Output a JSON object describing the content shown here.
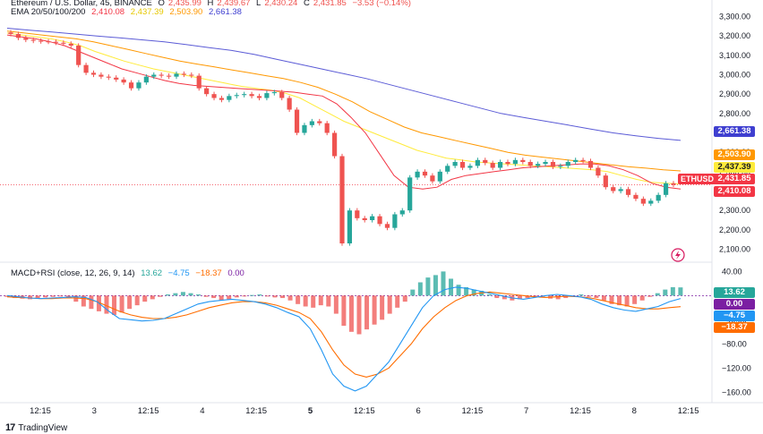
{
  "header": {
    "symbol_line": "Ethereum / U.S. Dollar, 45, BINANCE",
    "ohlc": {
      "o_label": "O",
      "o": "2,435.99",
      "h_label": "H",
      "h": "2,439.67",
      "l_label": "L",
      "l": "2,430.24",
      "c_label": "C",
      "c": "2,431.85",
      "change": "−3.53 (−0.14%)"
    },
    "ema_name": "EMA 20/50/100/200",
    "ema_values": [
      "2,410.08",
      "2,437.39",
      "2,503.90",
      "2,661.38"
    ]
  },
  "macd_legend": {
    "name": "MACD+RSI (close, 12, 26, 9, 14)",
    "values": [
      "13.62",
      "−4.75",
      "−18.37",
      "0.00"
    ]
  },
  "price_labels": {
    "ema200": "2,661.38",
    "ema100": "2,503.90",
    "ema50": "2,437.39",
    "symbol": "ETHUSD",
    "last": "2,431.85",
    "ema20": "2,410.08"
  },
  "macd_labels": {
    "hist": "13.62",
    "zero": "0.00",
    "macd": "−4.75",
    "signal": "−18.37"
  },
  "footer": {
    "brand": "TradingView"
  },
  "colors": {
    "up": "#26a69a",
    "down": "#ef5350",
    "ema20": "#f23645",
    "ema50": "#ffeb3b",
    "ema100": "#ff9800",
    "ema200": "#5b5bd6",
    "macd": "#2196f3",
    "signal": "#ff6d00"
  },
  "chart_data": [
    {
      "type": "candlestick",
      "title": "Ethereum / U.S. Dollar, 45, BINANCE",
      "y_axis": {
        "ticks": [
          "3,300.00",
          "3,200.00",
          "3,100.00",
          "3,000.00",
          "2,900.00",
          "2,800.00",
          "2,700.00",
          "2,600.00",
          "2,500.00",
          "2,400.00",
          "2,300.00",
          "2,200.00",
          "2,100.00"
        ],
        "range": [
          2070,
          3330
        ]
      },
      "x_axis": {
        "ticks": [
          "12:15",
          "3",
          "12:15",
          "4",
          "12:15",
          "5",
          "12:15",
          "6",
          "12:15",
          "7",
          "12:15",
          "8",
          "12:15"
        ]
      },
      "close_series": [
        3210,
        3190,
        3180,
        3175,
        3172,
        3170,
        3165,
        3160,
        3150,
        3050,
        3010,
        3000,
        2990,
        2985,
        2975,
        2960,
        2930,
        2960,
        2990,
        3000,
        2995,
        2990,
        3005,
        3000,
        2995,
        2930,
        2900,
        2880,
        2870,
        2890,
        2895,
        2900,
        2890,
        2880,
        2905,
        2910,
        2880,
        2820,
        2700,
        2740,
        2760,
        2750,
        2700,
        2580,
        2130,
        2300,
        2260,
        2250,
        2270,
        2230,
        2210,
        2280,
        2300,
        2470,
        2500,
        2480,
        2450,
        2500,
        2530,
        2550,
        2520,
        2530,
        2560,
        2545,
        2520,
        2550,
        2540,
        2560,
        2550,
        2530,
        2540,
        2550,
        2525,
        2530,
        2550,
        2560,
        2555,
        2520,
        2480,
        2420,
        2400,
        2410,
        2380,
        2360,
        2335,
        2350,
        2380,
        2440,
        2432
      ],
      "ema": {
        "ema20": [
          3205,
          3195,
          3185,
          3170,
          3150,
          3120,
          3090,
          3060,
          3030,
          3010,
          2990,
          2970,
          2955,
          2945,
          2940,
          2935,
          2930,
          2925,
          2920,
          2915,
          2910,
          2900,
          2890,
          2850,
          2780,
          2700,
          2590,
          2480,
          2420,
          2410,
          2420,
          2460,
          2480,
          2490,
          2500,
          2510,
          2520,
          2525,
          2530,
          2535,
          2540,
          2540,
          2530,
          2510,
          2480,
          2440,
          2420,
          2410
        ],
        "ema50": [
          3215,
          3205,
          3195,
          3185,
          3170,
          3150,
          3120,
          3095,
          3070,
          3050,
          3030,
          3015,
          3000,
          2985,
          2970,
          2955,
          2940,
          2930,
          2920,
          2905,
          2880,
          2840,
          2800,
          2760,
          2730,
          2700,
          2670,
          2640,
          2610,
          2590,
          2570,
          2560,
          2550,
          2545,
          2540,
          2535,
          2530,
          2525,
          2520,
          2515,
          2510,
          2500,
          2480,
          2460,
          2445,
          2440,
          2437
        ],
        "ema100": [
          3225,
          3215,
          3205,
          3195,
          3185,
          3170,
          3150,
          3130,
          3110,
          3090,
          3070,
          3055,
          3040,
          3025,
          3010,
          2995,
          2980,
          2960,
          2935,
          2900,
          2860,
          2810,
          2770,
          2730,
          2700,
          2680,
          2660,
          2640,
          2620,
          2600,
          2585,
          2575,
          2565,
          2555,
          2545,
          2535,
          2525,
          2518,
          2510,
          2504
        ],
        "ema200": [
          3240,
          3230,
          3220,
          3210,
          3200,
          3190,
          3180,
          3170,
          3155,
          3140,
          3125,
          3105,
          3080,
          3055,
          3030,
          3005,
          2980,
          2950,
          2920,
          2890,
          2860,
          2830,
          2800,
          2780,
          2760,
          2740,
          2720,
          2700,
          2685,
          2672,
          2661
        ]
      }
    },
    {
      "type": "macd",
      "title": "MACD+RSI (close, 12, 26, 9, 14)",
      "y_axis": {
        "ticks": [
          "40.00",
          "0.00",
          "−40.00",
          "−80.00",
          "−120.00",
          "−160.00"
        ],
        "range": [
          -170,
          45
        ]
      },
      "histogram": [
        -2,
        -4,
        -5,
        -6,
        -4,
        -3,
        -2,
        -1,
        -3,
        -10,
        -18,
        -22,
        -26,
        -30,
        -32,
        -28,
        -22,
        -16,
        -10,
        -6,
        -2,
        2,
        4,
        6,
        4,
        2,
        -2,
        -4,
        -8,
        -6,
        -3,
        -1,
        1,
        2,
        -1,
        -3,
        -4,
        -8,
        -14,
        -18,
        -20,
        -16,
        -18,
        -30,
        -50,
        -60,
        -64,
        -56,
        -48,
        -40,
        -30,
        -20,
        -10,
        10,
        22,
        30,
        34,
        40,
        28,
        18,
        14,
        10,
        8,
        2,
        -4,
        -6,
        -8,
        -6,
        -4,
        -3,
        -2,
        -5,
        -6,
        -4,
        -2,
        2,
        -2,
        -4,
        -8,
        -14,
        -16,
        -18,
        -14,
        -8,
        -2,
        4,
        10,
        14,
        13.62
      ],
      "macd": [
        0,
        -2,
        -4,
        -5,
        -4,
        -3,
        -2,
        -3,
        -10,
        -25,
        -38,
        -40,
        -42,
        -41,
        -38,
        -30,
        -22,
        -14,
        -10,
        -8,
        -6,
        -8,
        -10,
        -14,
        -20,
        -28,
        -35,
        -55,
        -90,
        -130,
        -150,
        -158,
        -150,
        -130,
        -110,
        -80,
        -50,
        -20,
        0,
        10,
        14,
        12,
        8,
        4,
        0,
        -4,
        -6,
        -3,
        0,
        2,
        0,
        -2,
        -6,
        -14,
        -20,
        -24,
        -26,
        -22,
        -18,
        -10,
        -4.75
      ],
      "signal": [
        -2,
        -3,
        -4,
        -5,
        -5,
        -4,
        -4,
        -5,
        -10,
        -18,
        -26,
        -32,
        -36,
        -38,
        -38,
        -36,
        -32,
        -26,
        -20,
        -16,
        -12,
        -10,
        -10,
        -12,
        -16,
        -22,
        -28,
        -38,
        -60,
        -90,
        -115,
        -130,
        -135,
        -130,
        -120,
        -100,
        -80,
        -55,
        -35,
        -20,
        -8,
        0,
        4,
        6,
        4,
        2,
        0,
        -2,
        -3,
        -2,
        -1,
        -2,
        -4,
        -8,
        -12,
        -16,
        -20,
        -22,
        -22,
        -20,
        -18.37
      ],
      "x_axis": {
        "ticks": [
          "12:15",
          "3",
          "12:15",
          "4",
          "12:15",
          "5",
          "12:15",
          "6",
          "12:15",
          "7",
          "12:15",
          "8",
          "12:15"
        ],
        "bold_ticks": [
          "5"
        ]
      }
    }
  ]
}
